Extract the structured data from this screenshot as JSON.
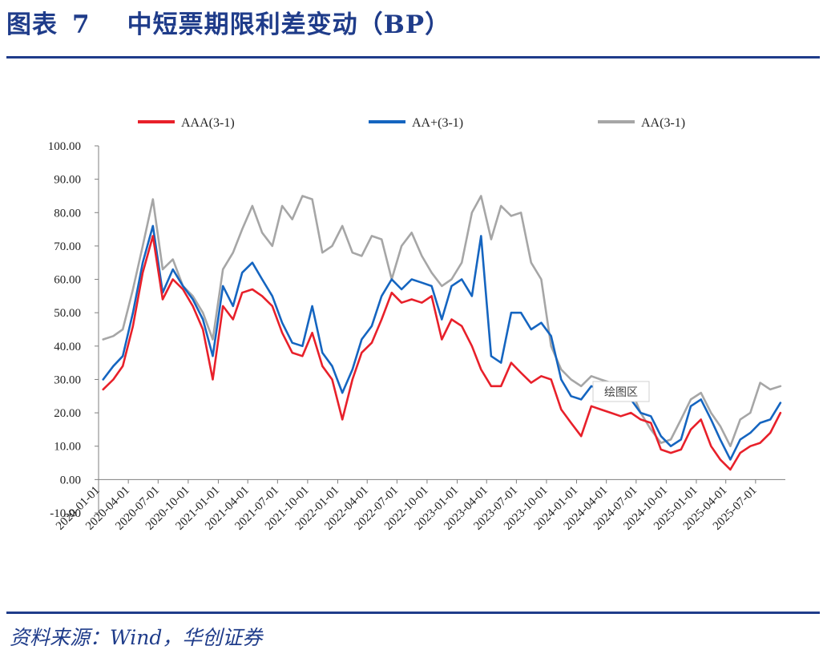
{
  "header": {
    "figure_label": "图表",
    "figure_number": "7",
    "title": "中短票期限利差变动（BP）"
  },
  "footer": {
    "source": "资料来源：Wind，华创证券"
  },
  "chart_data": {
    "type": "line",
    "title": "中短票期限利差变动（BP）",
    "xlabel": "",
    "ylabel": "",
    "ylim": [
      -10,
      100
    ],
    "y_ticks": [
      "100.00",
      "90.00",
      "80.00",
      "70.00",
      "60.00",
      "50.00",
      "40.00",
      "30.00",
      "20.00",
      "10.00",
      "0.00",
      "-10.00"
    ],
    "x_ticks": [
      "2020-01-01",
      "2020-04-01",
      "2020-07-01",
      "2020-10-01",
      "2021-01-01",
      "2021-04-01",
      "2021-07-01",
      "2021-10-01",
      "2022-01-01",
      "2022-04-01",
      "2022-07-01",
      "2022-10-01",
      "2023-01-01",
      "2023-04-01",
      "2023-07-01",
      "2023-10-01",
      "2024-01-01",
      "2024-04-01",
      "2024-07-01",
      "2024-10-01",
      "2025-01-01",
      "2025-04-01",
      "2025-07-01"
    ],
    "x_range": [
      "2020-01-01",
      "2025-09-30"
    ],
    "legend_position": "top",
    "annotation": "绘图区",
    "grid": false,
    "dates": [
      "2020-01",
      "2020-02",
      "2020-03",
      "2020-04",
      "2020-05",
      "2020-06",
      "2020-07",
      "2020-08",
      "2020-09",
      "2020-10",
      "2020-11",
      "2020-12",
      "2021-01",
      "2021-02",
      "2021-03",
      "2021-04",
      "2021-05",
      "2021-06",
      "2021-07",
      "2021-08",
      "2021-09",
      "2021-10",
      "2021-11",
      "2021-12",
      "2022-01",
      "2022-02",
      "2022-03",
      "2022-04",
      "2022-05",
      "2022-06",
      "2022-07",
      "2022-08",
      "2022-09",
      "2022-10",
      "2022-11",
      "2022-12",
      "2023-01",
      "2023-02",
      "2023-03",
      "2023-04",
      "2023-05",
      "2023-06",
      "2023-07",
      "2023-08",
      "2023-09",
      "2023-10",
      "2023-11",
      "2023-12",
      "2024-01",
      "2024-02",
      "2024-03",
      "2024-04",
      "2024-05",
      "2024-06",
      "2024-07",
      "2024-08",
      "2024-09",
      "2024-10",
      "2024-11",
      "2024-12",
      "2025-01",
      "2025-02",
      "2025-03",
      "2025-04",
      "2025-05",
      "2025-06",
      "2025-07",
      "2025-08",
      "2025-09"
    ],
    "series": [
      {
        "name": "AAA(3-1)",
        "color": "#e8202a",
        "values": [
          27,
          30,
          34,
          46,
          62,
          73,
          54,
          60,
          57,
          52,
          45,
          30,
          52,
          48,
          56,
          57,
          55,
          52,
          44,
          38,
          37,
          44,
          34,
          30,
          18,
          30,
          38,
          41,
          48,
          56,
          53,
          54,
          53,
          55,
          42,
          48,
          46,
          40,
          33,
          28,
          28,
          35,
          32,
          29,
          31,
          30,
          21,
          17,
          13,
          22,
          21,
          20,
          19,
          20,
          18,
          17,
          9,
          8,
          9,
          15,
          18,
          10,
          6,
          3,
          8,
          10,
          11,
          14,
          20
        ]
      },
      {
        "name": "AA+(3-1)",
        "color": "#1565c0",
        "values": [
          30,
          34,
          37,
          50,
          65,
          76,
          56,
          63,
          58,
          54,
          48,
          37,
          58,
          52,
          62,
          65,
          60,
          55,
          47,
          41,
          40,
          52,
          38,
          34,
          26,
          33,
          42,
          46,
          55,
          60,
          57,
          60,
          59,
          58,
          48,
          58,
          60,
          55,
          73,
          37,
          35,
          50,
          50,
          45,
          47,
          43,
          30,
          25,
          24,
          28,
          27,
          26,
          24,
          24,
          20,
          19,
          13,
          10,
          12,
          22,
          24,
          18,
          12,
          6,
          12,
          14,
          17,
          18,
          23
        ]
      },
      {
        "name": "AA(3-1)",
        "color": "#a6a6a6",
        "values": [
          42,
          43,
          45,
          57,
          70,
          84,
          63,
          66,
          58,
          55,
          50,
          42,
          63,
          68,
          75,
          82,
          74,
          70,
          82,
          78,
          85,
          84,
          68,
          70,
          76,
          68,
          67,
          73,
          72,
          60,
          70,
          74,
          67,
          62,
          58,
          60,
          65,
          80,
          85,
          72,
          82,
          79,
          80,
          65,
          60,
          40,
          33,
          30,
          28,
          31,
          30,
          29,
          28,
          27,
          20,
          15,
          11,
          12,
          18,
          24,
          26,
          20,
          16,
          10,
          18,
          20,
          29,
          27,
          28
        ]
      }
    ]
  }
}
